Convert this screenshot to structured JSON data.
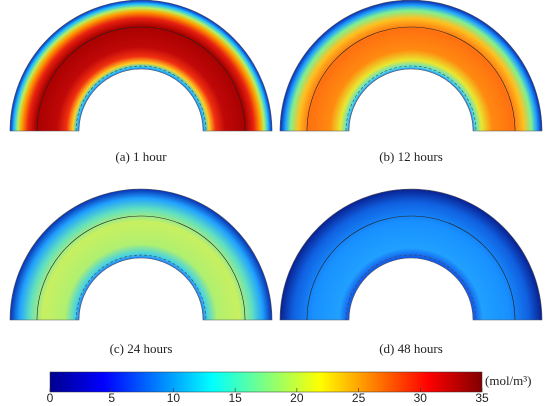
{
  "panels": [
    {
      "label": "(a) 1 hour"
    },
    {
      "label": "(b) 12 hours"
    },
    {
      "label": "(c) 24 hours"
    },
    {
      "label": "(d) 48 hours"
    }
  ],
  "colorbar": {
    "ticks": [
      0,
      5,
      10,
      15,
      20,
      25,
      30,
      35
    ],
    "unit": "(mol/m³)"
  }
}
